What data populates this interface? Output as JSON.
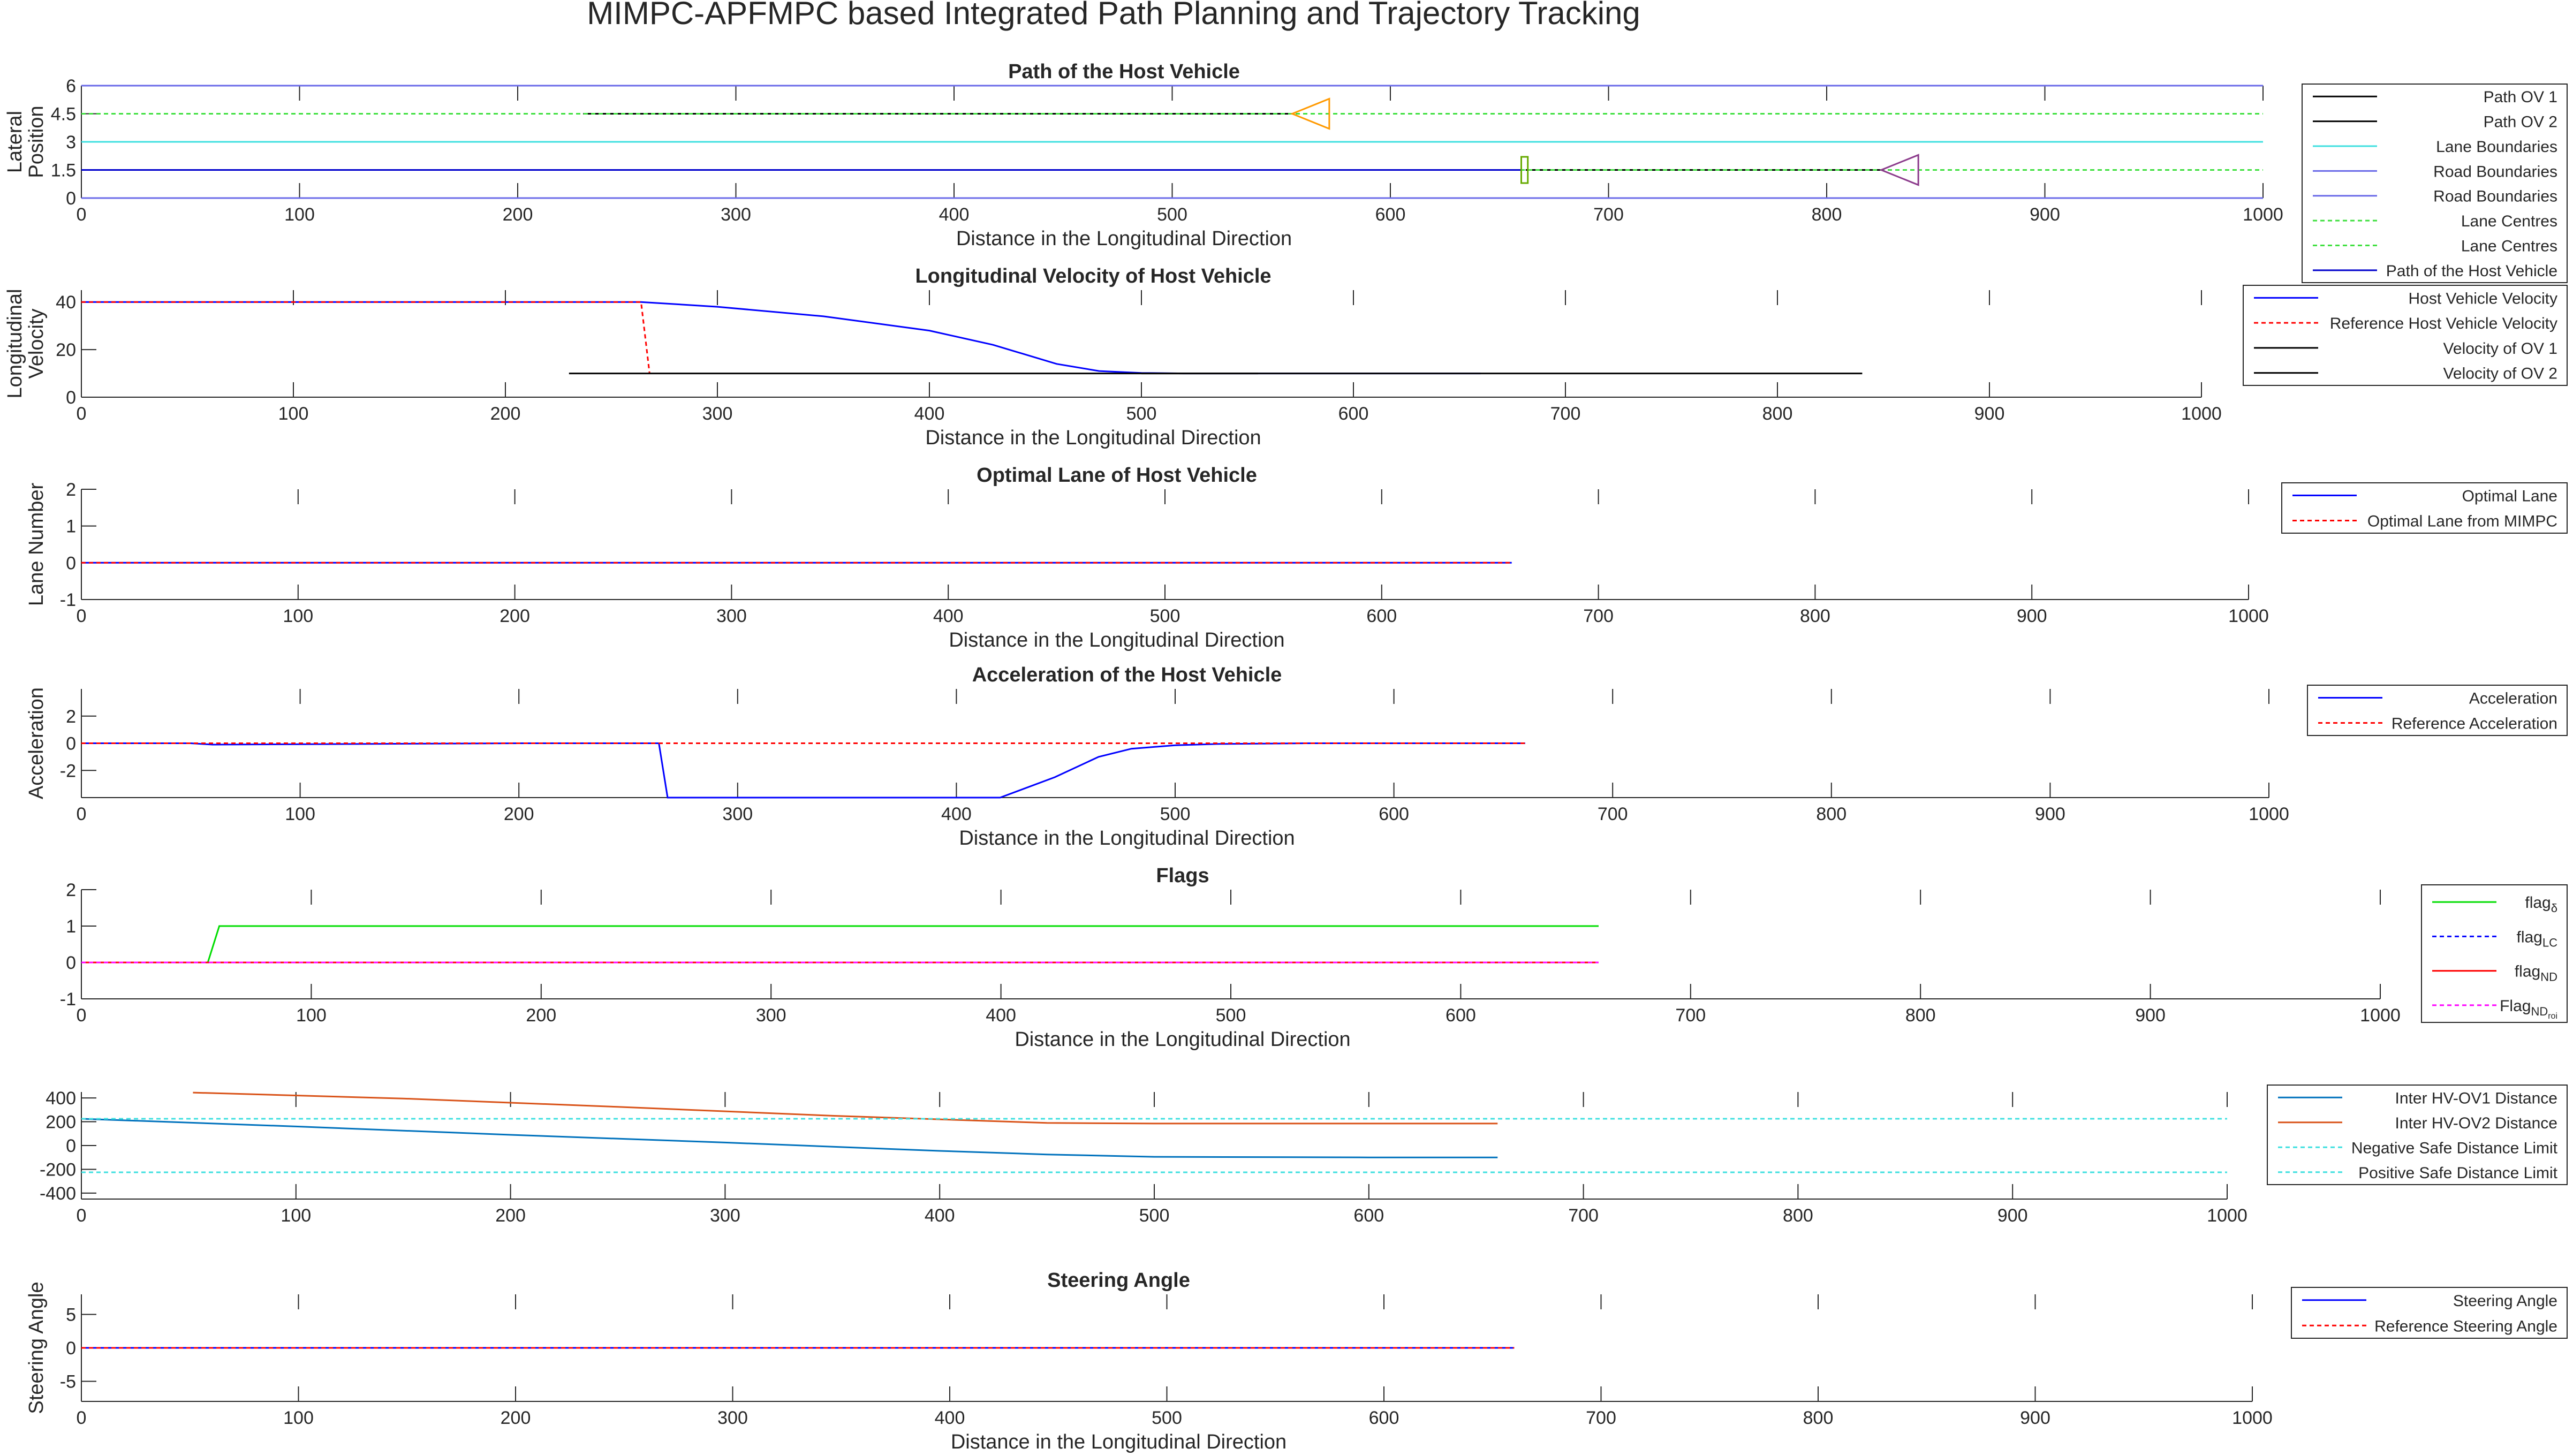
{
  "figure": {
    "title": "MIMPC-APFMPC based Integrated Path Planning and Trajectory Tracking"
  },
  "chart_data": [
    {
      "type": "line",
      "title": "Path of the Host Vehicle",
      "xlabel": "Distance in the Longitudinal Direction",
      "ylabel": [
        "Lateral",
        "Position"
      ],
      "xlim": [
        0,
        1000
      ],
      "ylim": [
        0,
        6
      ],
      "xticks": [
        0,
        100,
        200,
        300,
        400,
        500,
        600,
        700,
        800,
        900,
        1000
      ],
      "yticks": [
        0,
        1.5,
        3,
        4.5,
        6
      ],
      "legend_position": "right",
      "series": [
        {
          "name": "Path OV 1",
          "color": "#000000",
          "dash": "",
          "x": [
            230,
            555
          ],
          "y": [
            4.5,
            4.5
          ]
        },
        {
          "name": "Path OV 2",
          "color": "#000000",
          "dash": "",
          "x": [
            662,
            825
          ],
          "y": [
            1.5,
            1.5
          ]
        },
        {
          "name": "Lane Boundaries",
          "color": "#40e0e0",
          "dash": "",
          "x": [
            0,
            1000
          ],
          "y": [
            3,
            3
          ]
        },
        {
          "name": "Road Boundaries",
          "color": "#6a6ae8",
          "dash": "",
          "x": [
            0,
            1000
          ],
          "y": [
            0,
            0
          ]
        },
        {
          "name": "Road Boundaries",
          "color": "#6a6ae8",
          "dash": "",
          "x": [
            0,
            1000
          ],
          "y": [
            6,
            6
          ]
        },
        {
          "name": "Lane Centres",
          "color": "#40e040",
          "dash": "8,6",
          "x": [
            0,
            1000
          ],
          "y": [
            1.5,
            1.5
          ]
        },
        {
          "name": "Lane Centres",
          "color": "#40e040",
          "dash": "8,6",
          "x": [
            0,
            1000
          ],
          "y": [
            4.5,
            4.5
          ]
        },
        {
          "name": "Path of the Host Vehicle",
          "color": "#0000cc",
          "dash": "",
          "x": [
            0,
            660
          ],
          "y": [
            1.5,
            1.5
          ]
        }
      ],
      "shapes": [
        {
          "kind": "triangle",
          "color": "#ff9900",
          "tip": [
            555,
            4.5
          ],
          "base_x": 572,
          "half_height": 0.8
        },
        {
          "kind": "triangle",
          "color": "#8b3a8b",
          "tip": [
            825,
            1.5
          ],
          "base_x": 842,
          "half_height": 0.8
        },
        {
          "kind": "rect",
          "color": "#66aa00",
          "x": [
            660,
            663
          ],
          "y": [
            0.8,
            2.2
          ]
        }
      ]
    },
    {
      "type": "line",
      "title": "Longitudinal Velocity of Host Vehicle",
      "xlabel": "Distance in the Longitudinal Direction",
      "ylabel": [
        "Longitudinal",
        "Velocity"
      ],
      "xlim": [
        0,
        1000
      ],
      "ylim": [
        0,
        45
      ],
      "xticks": [
        0,
        100,
        200,
        300,
        400,
        500,
        600,
        700,
        800,
        900,
        1000
      ],
      "yticks": [
        0,
        20,
        40
      ],
      "legend_position": "right",
      "series": [
        {
          "name": "Host Vehicle Velocity",
          "color": "#0000ff",
          "dash": "",
          "x": [
            0,
            100,
            200,
            264,
            300,
            350,
            400,
            430,
            460,
            480,
            500,
            520,
            600,
            660
          ],
          "y": [
            40,
            40,
            40,
            40,
            38,
            34,
            28,
            22,
            14,
            11,
            10.2,
            10,
            10,
            10
          ]
        },
        {
          "name": "Reference Host Vehicle Velocity",
          "color": "#ff0000",
          "dash": "8,6",
          "x": [
            0,
            264,
            268
          ],
          "y": [
            40,
            40,
            10
          ]
        },
        {
          "name": "Velocity of OV 1",
          "color": "#000000",
          "dash": "",
          "x": [
            230,
            555
          ],
          "y": [
            10,
            10
          ]
        },
        {
          "name": "Velocity of OV 2",
          "color": "#000000",
          "dash": "",
          "x": [
            500,
            840
          ],
          "y": [
            10,
            10
          ]
        }
      ]
    },
    {
      "type": "line",
      "title": "Optimal Lane of Host Vehicle",
      "xlabel": "Distance in the Longitudinal Direction",
      "ylabel": [
        "Lane Number"
      ],
      "xlim": [
        0,
        1000
      ],
      "ylim": [
        -1,
        2
      ],
      "xticks": [
        0,
        100,
        200,
        300,
        400,
        500,
        600,
        700,
        800,
        900,
        1000
      ],
      "yticks": [
        -1,
        0,
        1,
        2
      ],
      "legend_position": "right",
      "series": [
        {
          "name": "Optimal Lane",
          "color": "#0000ff",
          "dash": "",
          "x": [
            0,
            660
          ],
          "y": [
            0,
            0
          ]
        },
        {
          "name": "Optimal Lane from MIMPC",
          "color": "#ff0000",
          "dash": "8,6",
          "x": [
            0,
            660
          ],
          "y": [
            0,
            0
          ]
        }
      ]
    },
    {
      "type": "line",
      "title": "Acceleration of the Host Vehicle",
      "xlabel": "Distance in the Longitudinal Direction",
      "ylabel": [
        "Acceleration"
      ],
      "xlim": [
        0,
        1000
      ],
      "ylim": [
        -4,
        4
      ],
      "xticks": [
        0,
        100,
        200,
        300,
        400,
        500,
        600,
        700,
        800,
        900,
        1000
      ],
      "yticks": [
        -2,
        0,
        2
      ],
      "legend_position": "right",
      "series": [
        {
          "name": "Acceleration",
          "color": "#0000ff",
          "dash": "",
          "x": [
            0,
            50,
            60,
            200,
            264,
            268,
            300,
            400,
            420,
            445,
            465,
            480,
            500,
            520,
            560,
            600,
            660
          ],
          "y": [
            0,
            0,
            -0.1,
            0,
            0,
            -4,
            -4,
            -4,
            -4,
            -2.5,
            -1,
            -0.4,
            -0.15,
            -0.05,
            0,
            0,
            0
          ]
        },
        {
          "name": "Reference Acceleration",
          "color": "#ff0000",
          "dash": "8,6",
          "x": [
            0,
            660
          ],
          "y": [
            0,
            0
          ]
        }
      ]
    },
    {
      "type": "line",
      "title": "Flags",
      "xlabel": "Distance in the Longitudinal Direction",
      "ylabel": [],
      "xlim": [
        0,
        1000
      ],
      "ylim": [
        -1,
        2
      ],
      "xticks": [
        0,
        100,
        200,
        300,
        400,
        500,
        600,
        700,
        800,
        900,
        1000
      ],
      "yticks": [
        -1,
        0,
        1,
        2
      ],
      "legend_position": "right",
      "series": [
        {
          "name": "flag",
          "sub": "δ",
          "color": "#00dd00",
          "dash": "",
          "x": [
            0,
            55,
            60,
            660
          ],
          "y": [
            0,
            0,
            1,
            1
          ]
        },
        {
          "name": "flag",
          "sub": "LC",
          "color": "#0000ff",
          "dash": "8,6",
          "x": [
            0,
            660
          ],
          "y": [
            0,
            0
          ]
        },
        {
          "name": "flag",
          "sub": "ND",
          "color": "#ff0000",
          "dash": "",
          "x": [
            0,
            660
          ],
          "y": [
            0,
            0
          ]
        },
        {
          "name": "Flag",
          "sub": "ND",
          "sub2": "roi",
          "color": "#ff00ff",
          "dash": "8,6",
          "x": [
            0,
            660
          ],
          "y": [
            0,
            0
          ]
        }
      ]
    },
    {
      "type": "line",
      "title": "",
      "xlabel": "",
      "ylabel": [],
      "xlim": [
        0,
        1000
      ],
      "ylim": [
        -450,
        450
      ],
      "xticks": [
        0,
        100,
        200,
        300,
        400,
        500,
        600,
        700,
        800,
        900,
        1000
      ],
      "yticks": [
        -400,
        -200,
        0,
        200,
        400
      ],
      "legend_position": "right",
      "series": [
        {
          "name": "Inter HV-OV1 Distance",
          "color": "#0072bd",
          "dash": "",
          "x": [
            0,
            100,
            200,
            300,
            400,
            450,
            500,
            600,
            660
          ],
          "y": [
            225,
            160,
            90,
            25,
            -45,
            -75,
            -95,
            -100,
            -100
          ]
        },
        {
          "name": "Inter HV-OV2 Distance",
          "color": "#d95319",
          "dash": "",
          "x": [
            52,
            150,
            250,
            350,
            450,
            500,
            600,
            660
          ],
          "y": [
            445,
            395,
            325,
            250,
            190,
            185,
            185,
            185
          ]
        },
        {
          "name": "Negative Safe Distance Limit",
          "color": "#40e0e0",
          "dash": "8,6",
          "x": [
            0,
            1000
          ],
          "y": [
            225,
            225
          ]
        },
        {
          "name": "Positive Safe Distance Limit",
          "color": "#40e0e0",
          "dash": "8,6",
          "x": [
            0,
            1000
          ],
          "y": [
            -225,
            -225
          ]
        }
      ]
    },
    {
      "type": "line",
      "title": "Steering Angle",
      "xlabel": "Distance in the Longitudinal Direction",
      "ylabel": [
        "Steering Angle"
      ],
      "xlim": [
        0,
        1000
      ],
      "ylim": [
        -8,
        8
      ],
      "xticks": [
        0,
        100,
        200,
        300,
        400,
        500,
        600,
        700,
        800,
        900,
        1000
      ],
      "yticks": [
        -5,
        0,
        5
      ],
      "legend_position": "right",
      "series": [
        {
          "name": "Steering Angle",
          "color": "#0000ff",
          "dash": "",
          "x": [
            0,
            660
          ],
          "y": [
            0,
            0
          ]
        },
        {
          "name": "Reference Steering Angle",
          "color": "#ff0000",
          "dash": "8,6",
          "x": [
            0,
            660
          ],
          "y": [
            0,
            0
          ]
        }
      ]
    }
  ]
}
